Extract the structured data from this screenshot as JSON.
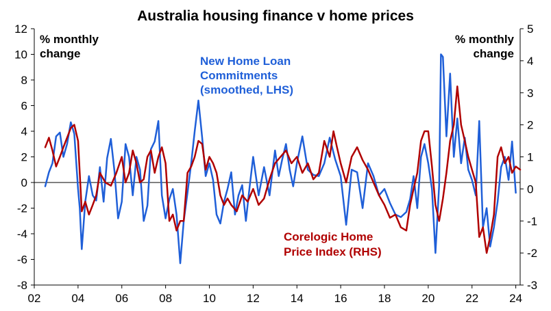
{
  "chart_data": {
    "type": "line",
    "title": "Australia housing finance v home prices",
    "x_tick_labels": [
      "02",
      "04",
      "06",
      "08",
      "10",
      "12",
      "14",
      "16",
      "18",
      "20",
      "22",
      "24"
    ],
    "x_tick_years": [
      2002,
      2004,
      2006,
      2008,
      2010,
      2012,
      2014,
      2016,
      2018,
      2020,
      2022,
      2024
    ],
    "xlim": [
      2002,
      2024.2
    ],
    "left_axis": {
      "unit_label_1": "% monthly",
      "unit_label_2": "change",
      "ylim": [
        -8,
        12
      ],
      "ticks": [
        -8,
        -6,
        -4,
        -2,
        0,
        2,
        4,
        6,
        8,
        10,
        12
      ]
    },
    "right_axis": {
      "unit_label_1": "% monthly",
      "unit_label_2": "change",
      "ylim": [
        -3,
        5
      ],
      "ticks": [
        -3,
        -2,
        -1,
        0,
        1,
        2,
        3,
        4,
        5
      ]
    },
    "grid": false,
    "series": [
      {
        "name": "New Home Loan Commitments (smoothed, LHS)",
        "label_lines": [
          "New Home Loan",
          "Commitments",
          "(smoothed, LHS)"
        ],
        "axis": "left",
        "color": "#1f5fd8",
        "x": [
          2002.5,
          2002.67,
          2002.83,
          2003.0,
          2003.17,
          2003.33,
          2003.5,
          2003.67,
          2003.83,
          2004.0,
          2004.08,
          2004.17,
          2004.33,
          2004.5,
          2004.67,
          2004.83,
          2005.0,
          2005.17,
          2005.33,
          2005.5,
          2005.67,
          2005.83,
          2006.0,
          2006.17,
          2006.33,
          2006.5,
          2006.67,
          2006.83,
          2007.0,
          2007.17,
          2007.33,
          2007.5,
          2007.67,
          2007.83,
          2008.0,
          2008.17,
          2008.33,
          2008.5,
          2008.67,
          2008.83,
          2009.0,
          2009.17,
          2009.33,
          2009.5,
          2009.67,
          2009.83,
          2010.0,
          2010.17,
          2010.33,
          2010.5,
          2010.67,
          2010.83,
          2011.0,
          2011.17,
          2011.33,
          2011.5,
          2011.67,
          2011.83,
          2012.0,
          2012.25,
          2012.5,
          2012.75,
          2013.0,
          2013.17,
          2013.33,
          2013.5,
          2013.67,
          2013.83,
          2014.0,
          2014.25,
          2014.5,
          2014.75,
          2015.0,
          2015.25,
          2015.5,
          2015.75,
          2016.0,
          2016.25,
          2016.5,
          2016.75,
          2017.0,
          2017.25,
          2017.5,
          2017.75,
          2018.0,
          2018.25,
          2018.5,
          2018.75,
          2019.0,
          2019.17,
          2019.33,
          2019.5,
          2019.67,
          2019.83,
          2020.0,
          2020.17,
          2020.33,
          2020.5,
          2020.58,
          2020.67,
          2020.83,
          2021.0,
          2021.17,
          2021.33,
          2021.5,
          2021.67,
          2021.83,
          2022.0,
          2022.17,
          2022.33,
          2022.5,
          2022.67,
          2022.83,
          2023.0,
          2023.17,
          2023.33,
          2023.5,
          2023.67,
          2023.83,
          2024.0
        ],
        "y": [
          -0.3,
          0.8,
          1.5,
          3.6,
          3.9,
          2.0,
          3.0,
          4.7,
          3.8,
          -0.5,
          -2.0,
          -5.2,
          -1.5,
          0.5,
          -1.0,
          -1.4,
          1.2,
          -1.5,
          1.9,
          3.4,
          0.8,
          -2.8,
          -1.5,
          3.0,
          2.0,
          -1.0,
          2.0,
          1.0,
          -3.0,
          -1.8,
          2.6,
          3.2,
          4.8,
          -1.0,
          -2.8,
          -1.3,
          -0.5,
          -2.5,
          -6.3,
          -3.0,
          -0.8,
          1.5,
          4.0,
          6.4,
          3.5,
          0.5,
          1.5,
          0.2,
          -2.5,
          -3.2,
          -1.5,
          -0.5,
          0.8,
          -2.5,
          -1.0,
          -0.2,
          -3.0,
          -0.5,
          2.0,
          -1.0,
          1.2,
          -1.0,
          2.5,
          0.5,
          1.8,
          3.0,
          1.0,
          -0.3,
          1.5,
          3.6,
          1.0,
          0.6,
          0.5,
          1.5,
          3.5,
          1.8,
          0.5,
          -3.3,
          1.0,
          0.8,
          -2.0,
          1.5,
          0.5,
          -1.0,
          -0.5,
          -1.6,
          -2.5,
          -2.7,
          -2.3,
          -1.3,
          0.5,
          -2.0,
          2.0,
          3.0,
          1.5,
          -0.5,
          -5.5,
          -0.2,
          10.0,
          9.8,
          3.6,
          8.5,
          2.0,
          5.0,
          1.5,
          3.5,
          1.0,
          0.2,
          -1.0,
          4.8,
          -3.5,
          -2.0,
          -5.0,
          -3.5,
          -1.5,
          1.2,
          2.0,
          0.2,
          3.2,
          -0.8
        ]
      },
      {
        "name": "Corelogic Home Price Index (RHS)",
        "label_lines": [
          "Corelogic Home",
          "Price Index (RHS)"
        ],
        "axis": "right",
        "color": "#b00000",
        "x": [
          2002.5,
          2002.67,
          2002.83,
          2003.0,
          2003.17,
          2003.33,
          2003.5,
          2003.67,
          2003.83,
          2004.0,
          2004.17,
          2004.33,
          2004.5,
          2004.67,
          2004.83,
          2005.0,
          2005.25,
          2005.5,
          2005.75,
          2006.0,
          2006.17,
          2006.33,
          2006.5,
          2006.67,
          2006.83,
          2007.0,
          2007.17,
          2007.33,
          2007.5,
          2007.67,
          2007.83,
          2008.0,
          2008.17,
          2008.33,
          2008.5,
          2008.67,
          2008.83,
          2009.0,
          2009.17,
          2009.33,
          2009.5,
          2009.67,
          2009.83,
          2010.0,
          2010.17,
          2010.33,
          2010.5,
          2010.67,
          2010.83,
          2011.0,
          2011.25,
          2011.5,
          2011.75,
          2012.0,
          2012.25,
          2012.5,
          2012.75,
          2013.0,
          2013.25,
          2013.5,
          2013.75,
          2014.0,
          2014.25,
          2014.5,
          2014.75,
          2015.0,
          2015.25,
          2015.5,
          2015.67,
          2015.83,
          2016.0,
          2016.25,
          2016.5,
          2016.75,
          2017.0,
          2017.25,
          2017.5,
          2017.75,
          2018.0,
          2018.25,
          2018.5,
          2018.75,
          2019.0,
          2019.17,
          2019.33,
          2019.5,
          2019.67,
          2019.83,
          2020.0,
          2020.17,
          2020.33,
          2020.5,
          2020.67,
          2020.83,
          2021.0,
          2021.17,
          2021.33,
          2021.5,
          2021.67,
          2021.83,
          2022.0,
          2022.17,
          2022.33,
          2022.5,
          2022.67,
          2022.83,
          2023.0,
          2023.17,
          2023.33,
          2023.5,
          2023.67,
          2023.83,
          2024.0,
          2024.2
        ],
        "y": [
          1.3,
          1.6,
          1.2,
          0.7,
          1.0,
          1.3,
          1.6,
          1.9,
          2.0,
          1.5,
          -0.7,
          -0.4,
          -0.8,
          -0.5,
          -0.2,
          0.5,
          0.2,
          0.1,
          0.5,
          1.0,
          0.2,
          0.5,
          1.2,
          0.8,
          0.2,
          0.3,
          1.0,
          1.2,
          0.5,
          1.0,
          1.3,
          0.8,
          -1.0,
          -0.8,
          -1.3,
          -1.0,
          -1.0,
          0.5,
          0.7,
          1.0,
          1.5,
          1.4,
          0.6,
          1.0,
          0.8,
          0.5,
          -0.2,
          -0.5,
          -0.3,
          -0.5,
          -0.7,
          -0.2,
          -0.4,
          0.0,
          -0.5,
          -0.3,
          0.3,
          0.8,
          1.0,
          1.2,
          0.8,
          1.0,
          0.5,
          0.8,
          0.3,
          0.5,
          1.5,
          1.0,
          1.8,
          1.3,
          0.8,
          0.2,
          1.0,
          1.3,
          0.9,
          0.6,
          0.2,
          -0.2,
          -0.5,
          -0.9,
          -0.8,
          -1.2,
          -1.3,
          -0.5,
          0.0,
          0.5,
          1.5,
          1.8,
          1.8,
          0.7,
          -0.5,
          -1.0,
          -0.3,
          0.5,
          1.5,
          2.0,
          3.2,
          2.0,
          1.5,
          1.0,
          0.6,
          0.2,
          -1.5,
          -1.2,
          -2.0,
          -1.5,
          -0.8,
          1.0,
          1.3,
          0.8,
          1.0,
          0.5,
          0.7,
          0.6
        ]
      }
    ]
  }
}
